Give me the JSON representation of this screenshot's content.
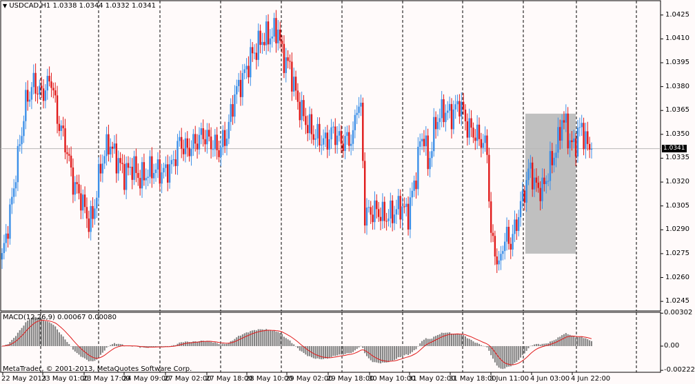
{
  "chart_title": "USDCAD,H1  1.0338 1.0344 1.0332 1.0341",
  "macd_label": "MACD(12,26,9) 0.00067 0.00080",
  "copyright": "MetaTrader, © 2001-2013, MetaQuotes Software Corp.",
  "current_price": "1.0341",
  "colors": {
    "bull": "#3b8fe8",
    "bear": "#e01818",
    "macd_bars": "#808080",
    "signal": "#e01818",
    "box": "#c0c0c0"
  },
  "chart_data": {
    "type": "candlestick",
    "symbol": "USDCAD",
    "timeframe": "H1",
    "price_ticks": [
      "1.0425",
      "1.0410",
      "1.0395",
      "1.0380",
      "1.0365",
      "1.0350",
      "1.0335",
      "1.0320",
      "1.0305",
      "1.0290",
      "1.0275",
      "1.0260",
      "1.0245"
    ],
    "price_range": [
      1.0239,
      1.0434
    ],
    "macd_ticks": [
      "0.00302",
      "0.00",
      "-0.00222"
    ],
    "macd_range": [
      -0.0024,
      0.0031
    ],
    "time_labels": [
      "22 May 2013",
      "23 May 01:00",
      "23 May 17:00",
      "24 May 09:00",
      "27 May 02:00",
      "27 May 18:00",
      "28 May 10:00",
      "29 May 02:00",
      "29 May 18:00",
      "30 May 10:00",
      "31 May 02:00",
      "31 May 18:00",
      "3 Jun 11:00",
      "4 Jun 03:00",
      "4 Jun 22:00"
    ],
    "close_anchors": [
      [
        0,
        1.0272
      ],
      [
        4,
        1.03
      ],
      [
        8,
        1.0335
      ],
      [
        12,
        1.037
      ],
      [
        16,
        1.0382
      ],
      [
        20,
        1.0375
      ],
      [
        25,
        1.0385
      ],
      [
        28,
        1.036
      ],
      [
        32,
        1.0345
      ],
      [
        36,
        1.032
      ],
      [
        40,
        1.031
      ],
      [
        44,
        1.0295
      ],
      [
        46,
        1.0298
      ],
      [
        50,
        1.033
      ],
      [
        54,
        1.0345
      ],
      [
        58,
        1.0335
      ],
      [
        62,
        1.0325
      ],
      [
        66,
        1.033
      ],
      [
        70,
        1.0322
      ],
      [
        76,
        1.0328
      ],
      [
        82,
        1.0326
      ],
      [
        86,
        1.033
      ],
      [
        90,
        1.0345
      ],
      [
        94,
        1.034
      ],
      [
        98,
        1.0345
      ],
      [
        102,
        1.035
      ],
      [
        106,
        1.0345
      ],
      [
        110,
        1.034
      ],
      [
        114,
        1.035
      ],
      [
        118,
        1.0375
      ],
      [
        122,
        1.0385
      ],
      [
        126,
        1.0398
      ],
      [
        132,
        1.041
      ],
      [
        136,
        1.0412
      ],
      [
        140,
        1.0416
      ],
      [
        142,
        1.04
      ],
      [
        146,
        1.0392
      ],
      [
        150,
        1.037
      ],
      [
        154,
        1.0358
      ],
      [
        158,
        1.035
      ],
      [
        164,
        1.0345
      ],
      [
        168,
        1.0352
      ],
      [
        172,
        1.0345
      ],
      [
        178,
        1.0348
      ],
      [
        180,
        1.037
      ],
      [
        182,
        1.0365
      ],
      [
        184,
        1.03
      ],
      [
        190,
        1.0302
      ],
      [
        194,
        1.0298
      ],
      [
        198,
        1.03
      ],
      [
        202,
        1.0305
      ],
      [
        206,
        1.03
      ],
      [
        210,
        1.0325
      ],
      [
        212,
        1.0345
      ],
      [
        214,
        1.035
      ],
      [
        216,
        1.033
      ],
      [
        220,
        1.0358
      ],
      [
        224,
        1.0365
      ],
      [
        228,
        1.0362
      ],
      [
        232,
        1.037
      ],
      [
        236,
        1.0355
      ],
      [
        240,
        1.035
      ],
      [
        244,
        1.0345
      ],
      [
        246,
        1.034
      ],
      [
        248,
        1.0285
      ],
      [
        250,
        1.0278
      ],
      [
        252,
        1.0265
      ],
      [
        254,
        1.0282
      ],
      [
        256,
        1.0285
      ],
      [
        258,
        1.0282
      ],
      [
        260,
        1.029
      ],
      [
        264,
        1.031
      ],
      [
        268,
        1.033
      ],
      [
        270,
        1.0318
      ],
      [
        274,
        1.0315
      ],
      [
        278,
        1.033
      ],
      [
        282,
        1.0345
      ],
      [
        284,
        1.036
      ],
      [
        286,
        1.0355
      ],
      [
        288,
        1.0345
      ],
      [
        290,
        1.0342
      ],
      [
        292,
        1.035
      ],
      [
        294,
        1.0355
      ],
      [
        296,
        1.0345
      ],
      [
        298,
        1.0341
      ]
    ],
    "annotations": [
      {
        "type": "shaded-box",
        "price_from": 1.0275,
        "price_to": 1.0363
      }
    ]
  }
}
